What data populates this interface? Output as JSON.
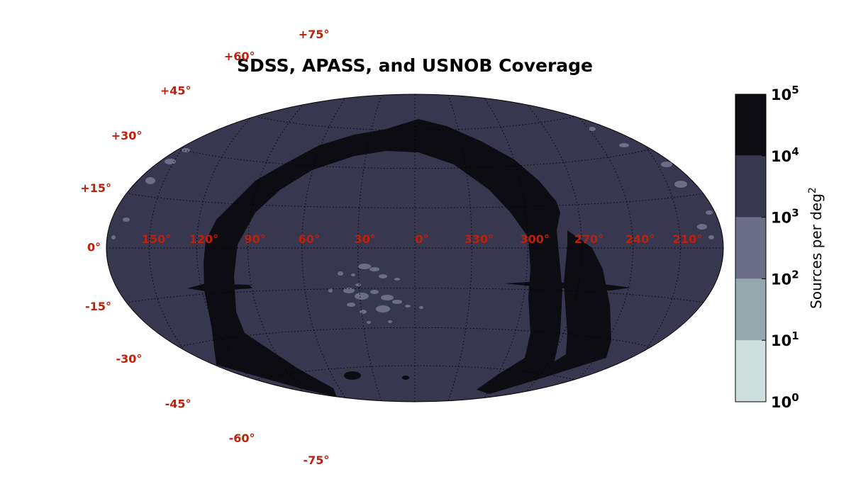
{
  "chart_data": {
    "type": "heatmap",
    "projection": "hammer-aitoff (galactic coordinates)",
    "title": "SDSS, APASS, and USNOB Coverage",
    "grid": true,
    "lat_labels": [
      "+75°",
      "+60°",
      "+45°",
      "+30°",
      "+15°",
      "0°",
      "-15°",
      "-30°",
      "-45°",
      "-60°",
      "-75°"
    ],
    "lon_labels": [
      "150°",
      "120°",
      "90°",
      "60°",
      "30°",
      "0°",
      "330°",
      "300°",
      "270°",
      "240°",
      "210°"
    ],
    "background_density_level": "10^3 - 10^4",
    "band_density_level": "10^4 - 10^5",
    "colorbar": {
      "label": "Sources per deg",
      "label_sup": "2",
      "scale": "log",
      "range": [
        1,
        100000
      ],
      "tick_base": "10",
      "tick_exponents": [
        "0",
        "1",
        "2",
        "3",
        "4",
        "5"
      ],
      "levels": [
        {
          "from": 1,
          "to": 10,
          "color": "#cde0dd"
        },
        {
          "from": 10,
          "to": 100,
          "color": "#93a9ae"
        },
        {
          "from": 100,
          "to": 1000,
          "color": "#6a6e87"
        },
        {
          "from": 1000,
          "to": 10000,
          "color": "#373750"
        },
        {
          "from": 10000,
          "to": 100000,
          "color": "#0c0c12"
        }
      ]
    }
  }
}
